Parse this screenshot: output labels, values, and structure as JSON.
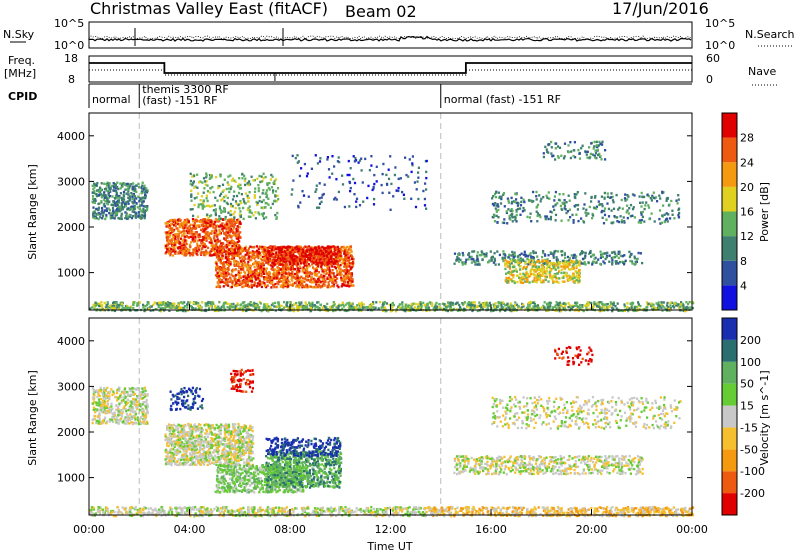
{
  "header": {
    "title": "Christmas Valley East (fitACF)",
    "beam": "Beam 02",
    "date": "17/Jun/2016"
  },
  "noise_panel": {
    "left_label": "N.Sky",
    "left_ticks": [
      "10^5",
      "10^0"
    ],
    "right_label": "N.Search",
    "right_ticks": [
      "10^5",
      "10^0"
    ],
    "right_legend_style": "dotted"
  },
  "freq_panel": {
    "left_label_top": "Freq.",
    "left_label_bottom": "[MHz]",
    "left_ticks": [
      "18",
      "8"
    ],
    "right_label": "Nave",
    "right_ticks": [
      "60",
      "0"
    ],
    "right_legend_style": "dotted"
  },
  "cpid": {
    "label": "CPID",
    "segments": [
      {
        "start_hour": 0.0,
        "end_hour": 2.0,
        "lines": [
          "normal"
        ]
      },
      {
        "start_hour": 2.0,
        "end_hour": 14.0,
        "lines": [
          "themis 3300 RF",
          "(fast) -151 RF"
        ]
      },
      {
        "start_hour": 14.0,
        "end_hour": 24.0,
        "lines": [
          "normal (fast) -151 RF"
        ]
      }
    ]
  },
  "chart_data": [
    {
      "type": "heatmap",
      "name": "power",
      "ylabel": "Slant Range [km]",
      "xlim_hours": [
        0,
        24
      ],
      "ylim_km": [
        180,
        4500
      ],
      "yticks": [
        1000,
        2000,
        3000,
        4000
      ],
      "colorbar": {
        "label": "Power [dB]",
        "ticks": [
          "4",
          "8",
          "12",
          "16",
          "20",
          "24",
          "28"
        ],
        "colors": [
          "#1010e0",
          "#2f4f9f",
          "#3f7f6f",
          "#5fb05f",
          "#e0d020",
          "#f59a10",
          "#ee5a10",
          "#e00000"
        ]
      },
      "regions": [
        {
          "x0": 0.1,
          "x1": 2.3,
          "y0": 2200,
          "y1": 3000,
          "level": 2,
          "density": 0.45
        },
        {
          "x0": 3.0,
          "x1": 6.0,
          "y0": 1400,
          "y1": 2200,
          "level": 6,
          "density": 0.55
        },
        {
          "x0": 5.0,
          "x1": 10.5,
          "y0": 700,
          "y1": 1600,
          "level": 6,
          "density": 0.55
        },
        {
          "x0": 7.0,
          "x1": 10.0,
          "y0": 1200,
          "y1": 1600,
          "level": 7,
          "density": 0.6
        },
        {
          "x0": 4.0,
          "x1": 7.5,
          "y0": 2200,
          "y1": 3200,
          "level": 3,
          "density": 0.15
        },
        {
          "x0": 14.5,
          "x1": 22.0,
          "y0": 1200,
          "y1": 1500,
          "level": 2,
          "density": 0.25
        },
        {
          "x0": 16.5,
          "x1": 19.5,
          "y0": 800,
          "y1": 1300,
          "level": 4,
          "density": 0.45
        },
        {
          "x0": 16.0,
          "x1": 23.5,
          "y0": 2100,
          "y1": 2800,
          "level": 2,
          "density": 0.12
        },
        {
          "x0": 18.0,
          "x1": 20.5,
          "y0": 3500,
          "y1": 3900,
          "level": 2,
          "density": 0.15
        },
        {
          "x0": 0.0,
          "x1": 24.0,
          "y0": 180,
          "y1": 380,
          "level": 3,
          "density": 0.5
        },
        {
          "x0": 8.0,
          "x1": 13.5,
          "y0": 2400,
          "y1": 3600,
          "level": 1,
          "density": 0.04
        }
      ]
    },
    {
      "type": "heatmap",
      "name": "velocity",
      "ylabel": "Slant Range [km]",
      "xlabel": "Time UT",
      "xlim_hours": [
        0,
        24
      ],
      "ylim_km": [
        180,
        4500
      ],
      "yticks": [
        1000,
        2000,
        3000,
        4000
      ],
      "xticks": [
        "00:00",
        "04:00",
        "08:00",
        "12:00",
        "16:00",
        "20:00",
        "00:00"
      ],
      "colorbar": {
        "label": "Velocity [m s^-1]",
        "ticks": [
          "200",
          "100",
          "50",
          "15",
          "-15",
          "-50",
          "-100",
          "-200"
        ],
        "colors": [
          "#1a2fb0",
          "#2a6f70",
          "#5fb05f",
          "#66cc33",
          "#c8c8c8",
          "#f5c030",
          "#f59a10",
          "#ee5a10",
          "#e00000"
        ]
      },
      "regions": [
        {
          "x0": 0.1,
          "x1": 2.3,
          "y0": 2200,
          "y1": 3000,
          "level": 4,
          "density": 0.45
        },
        {
          "x0": 3.0,
          "x1": 6.5,
          "y0": 1300,
          "y1": 2200,
          "level": 4,
          "density": 0.6
        },
        {
          "x0": 5.0,
          "x1": 8.5,
          "y0": 700,
          "y1": 1300,
          "level": 3,
          "density": 0.55
        },
        {
          "x0": 7.0,
          "x1": 10.0,
          "y0": 800,
          "y1": 1600,
          "level": 2,
          "density": 0.5
        },
        {
          "x0": 7.0,
          "x1": 10.0,
          "y0": 1500,
          "y1": 1900,
          "level": 0,
          "density": 0.35
        },
        {
          "x0": 3.2,
          "x1": 4.5,
          "y0": 2500,
          "y1": 3000,
          "level": 0,
          "density": 0.25
        },
        {
          "x0": 5.6,
          "x1": 6.5,
          "y0": 2900,
          "y1": 3400,
          "level": 8,
          "density": 0.3
        },
        {
          "x0": 14.5,
          "x1": 22.0,
          "y0": 1100,
          "y1": 1500,
          "level": 4,
          "density": 0.35
        },
        {
          "x0": 16.0,
          "x1": 23.5,
          "y0": 2100,
          "y1": 2800,
          "level": 4,
          "density": 0.15
        },
        {
          "x0": 18.5,
          "x1": 20.0,
          "y0": 3500,
          "y1": 3900,
          "level": 8,
          "density": 0.15
        },
        {
          "x0": 0.0,
          "x1": 13.5,
          "y0": 180,
          "y1": 380,
          "level": 4,
          "density": 0.45
        },
        {
          "x0": 13.5,
          "x1": 24.0,
          "y0": 180,
          "y1": 380,
          "level": 5,
          "density": 0.5
        }
      ]
    }
  ]
}
